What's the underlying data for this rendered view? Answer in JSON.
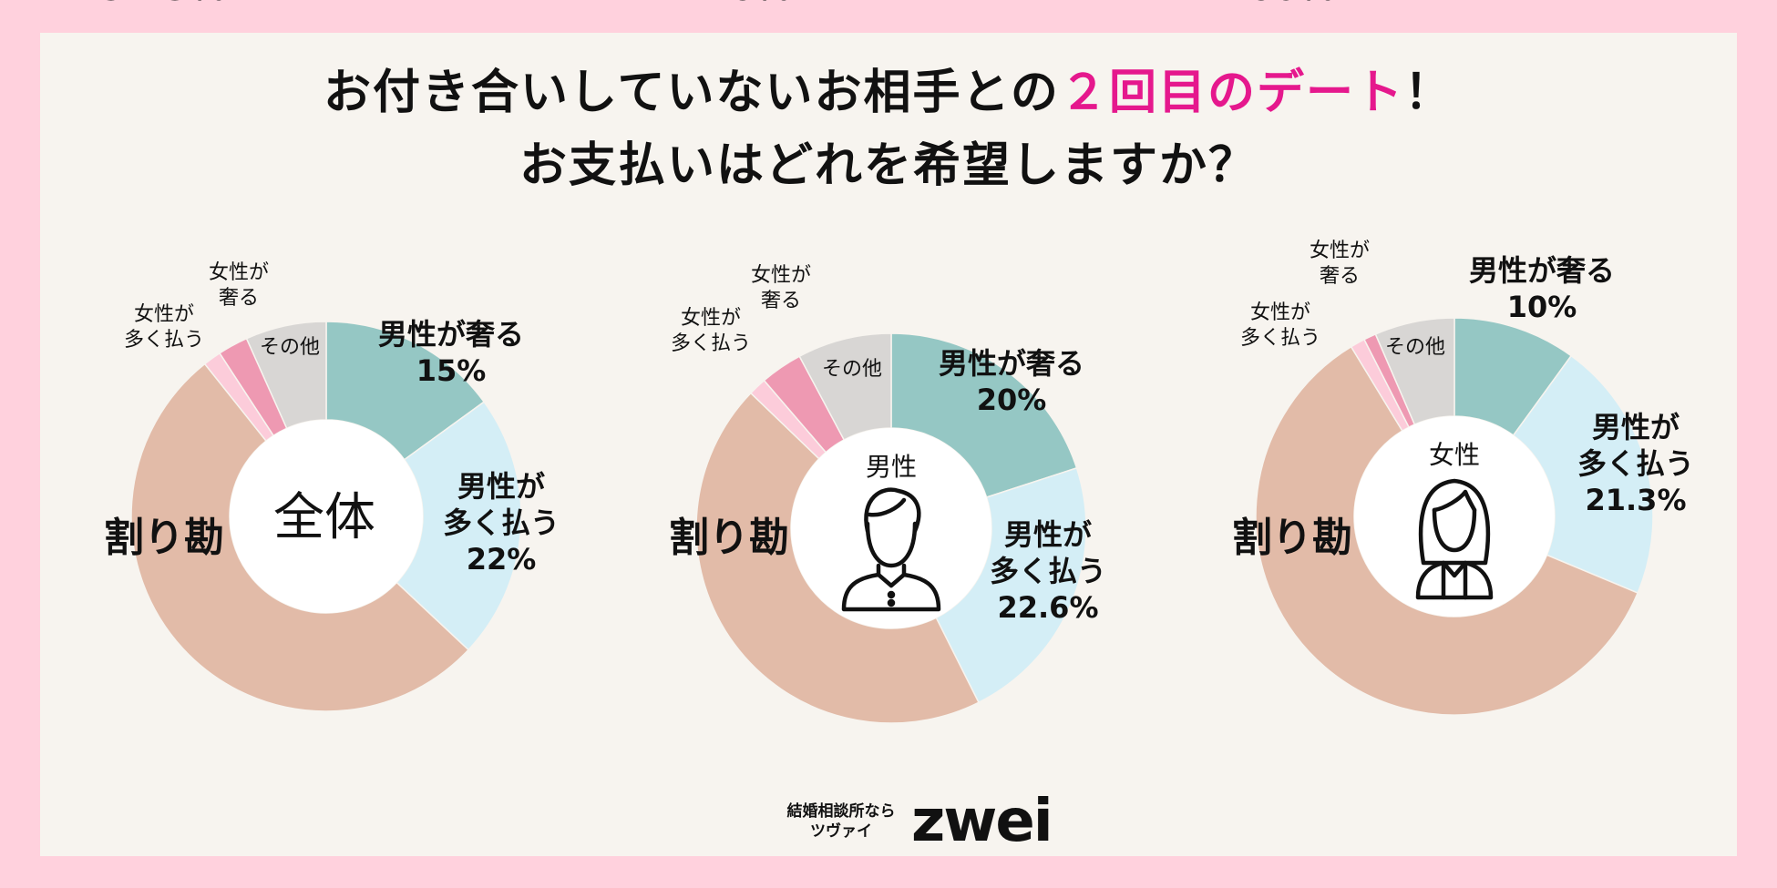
{
  "title": {
    "line1_before": "お付き合いしていないお相手との",
    "line1_highlight": "２回目のデート",
    "line1_after": "！",
    "line2": "お支払いはどれを希望しますか？"
  },
  "colors": {
    "page_border": "#FFD1DD",
    "panel": "#F7F4EF",
    "highlight": "#E5188D",
    "male_treats": "#95C7C4",
    "male_pays_more": "#D4EEF6",
    "split": "#E2BBA8",
    "female_pays_more": "#FCCCDA",
    "female_treats": "#EE99B2",
    "other": "#D8D6D4"
  },
  "chart_data": [
    {
      "type": "pie",
      "center_label": "全体",
      "center_icon": "",
      "categories": [
        "男性が奢る",
        "男性が多く払う",
        "割り勘",
        "女性が多く払う",
        "女性が奢る",
        "その他"
      ],
      "values": [
        15,
        22,
        52.3,
        1.5,
        2.5,
        6.7
      ],
      "labels": [
        {
          "lines": [
            "男性が奢る",
            "15%"
          ]
        },
        {
          "lines": [
            "男性が",
            "多く払う",
            "22%"
          ]
        },
        {
          "lines": [
            "割り勘"
          ],
          "pct": "52.3%"
        },
        {
          "lines": [
            "女性が",
            "多く払う"
          ]
        },
        {
          "lines": [
            "女性が",
            "奢る"
          ]
        },
        {
          "lines": [
            "その他"
          ]
        }
      ]
    },
    {
      "type": "pie",
      "center_label": "男性",
      "center_icon": "male-person-icon",
      "categories": [
        "男性が奢る",
        "男性が多く払う",
        "割り勘",
        "女性が多く払う",
        "女性が奢る",
        "その他"
      ],
      "values": [
        20,
        22.6,
        44.6,
        1.5,
        3.5,
        7.8
      ],
      "labels": [
        {
          "lines": [
            "男性が奢る",
            "20%"
          ]
        },
        {
          "lines": [
            "男性が",
            "多く払う",
            "22.6%"
          ]
        },
        {
          "lines": [
            "割り勘"
          ],
          "pct": "44.6%"
        },
        {
          "lines": [
            "女性が",
            "多く払う"
          ]
        },
        {
          "lines": [
            "女性が",
            "奢る"
          ]
        },
        {
          "lines": [
            "その他"
          ]
        }
      ]
    },
    {
      "type": "pie",
      "center_label": "女性",
      "center_icon": "female-person-icon",
      "categories": [
        "男性が奢る",
        "男性が多く払う",
        "割り勘",
        "女性が多く払う",
        "女性が奢る",
        "その他"
      ],
      "values": [
        10,
        21.3,
        60,
        1.2,
        1.0,
        6.5
      ],
      "labels": [
        {
          "lines": [
            "男性が奢る",
            "10%"
          ]
        },
        {
          "lines": [
            "男性が",
            "多く払う",
            "21.3%"
          ]
        },
        {
          "lines": [
            "割り勘"
          ],
          "pct": "60%"
        },
        {
          "lines": [
            "女性が",
            "多く払う"
          ]
        },
        {
          "lines": [
            "女性が",
            "奢る"
          ]
        },
        {
          "lines": [
            "その他"
          ]
        }
      ]
    }
  ],
  "footer": {
    "tagline": "結婚相談所なら",
    "tagline2": "ツヴァイ",
    "logo_text": "zwei"
  }
}
